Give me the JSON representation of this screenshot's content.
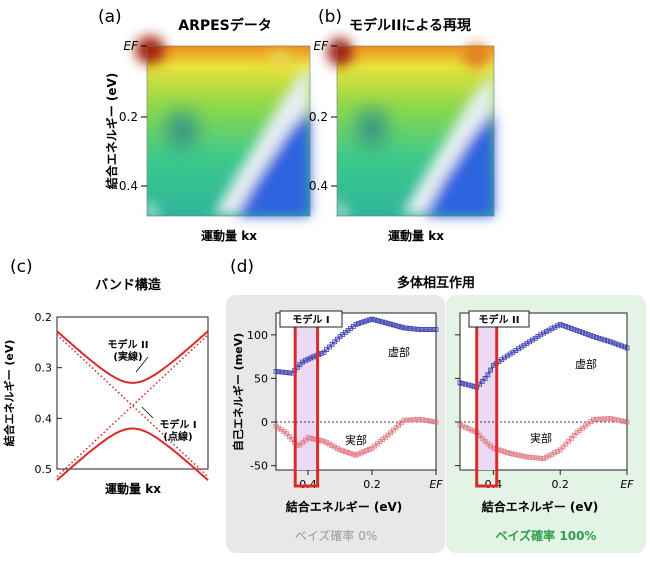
{
  "panels": {
    "a": {
      "letter": "(a)",
      "title": "ARPESデータ",
      "ylabel": "結合エネルギー (eV)",
      "xlabel": "運動量 kx",
      "yticks": [
        "EF",
        "0.2",
        "0.4"
      ]
    },
    "b": {
      "letter": "(b)",
      "title": "モデルIIによる再現",
      "xlabel": "運動量 kx",
      "yticks": [
        "EF",
        "0.2",
        "0.4"
      ]
    },
    "c": {
      "letter": "(c)",
      "title": "バンド構造",
      "ylabel": "結合エネルギー (eV)",
      "xlabel": "運動量 kx",
      "annotation_model2": "モデル II",
      "annotation_model2_sub": "(実線)",
      "annotation_model1": "モデル I",
      "annotation_model1_sub": "(点線)"
    },
    "d": {
      "letter": "(d)",
      "title": "多体相互作用",
      "ylabel": "自己エネルギー (meV)",
      "xlabel": "結合エネルギー (eV)",
      "left_box": "モデル I",
      "right_box": "モデル II",
      "imag_label": "虚部",
      "real_label": "実部",
      "bayes_left": "ベイズ確率 0%",
      "bayes_right": "ベイズ確率 100%"
    }
  },
  "colors": {
    "red": "#d92b2b",
    "blue": "#3a3fb0",
    "pink": "#e07a82",
    "bayes_left": "#999999",
    "bayes_right": "#2e9e48",
    "bg_left": "#e8e8e8",
    "bg_right": "#e3f4e6"
  },
  "chart_data": [
    {
      "type": "line",
      "panel": "c",
      "ylabel": "結合エネルギー (eV)",
      "xlabel": "運動量 kx",
      "yticks": [
        0.2,
        0.3,
        0.4,
        0.5
      ],
      "ylim": [
        0.2,
        0.5
      ],
      "series": [
        {
          "x": [
            -1,
            -0.5,
            0,
            0.5,
            1
          ],
          "y": [
            0.235,
            0.29,
            0.375,
            0.29,
            0.235
          ]
        },
        {
          "x": [
            -1,
            -0.5,
            0,
            0.5,
            1
          ],
          "y": [
            0.235,
            0.305,
            0.375,
            0.305,
            0.235
          ]
        }
      ]
    },
    {
      "type": "scatter",
      "panel": "d-left",
      "xlabel": "結合エネルギー (eV)",
      "ylabel": "自己エネルギー (meV)",
      "yticks": [
        -50,
        0,
        50,
        100
      ],
      "xticks": [
        "0.4",
        "0.2",
        "EF"
      ],
      "ylim": [
        -55,
        125
      ],
      "xlim": [
        0.5,
        0.0
      ],
      "series": [
        {
          "x": [
            0.5,
            0.45,
            0.42,
            0.4,
            0.35,
            0.3,
            0.25,
            0.2,
            0.15,
            0.1,
            0.05,
            0.0
          ],
          "y": [
            58,
            56,
            68,
            72,
            80,
            98,
            112,
            118,
            113,
            108,
            106,
            106
          ]
        },
        {
          "x": [
            0.5,
            0.47,
            0.43,
            0.4,
            0.35,
            0.3,
            0.25,
            0.2,
            0.15,
            0.1,
            0.05,
            0.0
          ],
          "y": [
            -5,
            -12,
            -28,
            -18,
            -22,
            -32,
            -38,
            -30,
            -15,
            2,
            3,
            0
          ]
        }
      ]
    },
    {
      "type": "scatter",
      "panel": "d-right",
      "xlabel": "結合エネルギー (eV)",
      "xticks": [
        "0.4",
        "0.2",
        "EF"
      ],
      "ylim": [
        -55,
        125
      ],
      "xlim": [
        0.5,
        0.0
      ],
      "series": [
        {
          "x": [
            0.5,
            0.45,
            0.42,
            0.4,
            0.35,
            0.3,
            0.25,
            0.2,
            0.15,
            0.1,
            0.05,
            0.0
          ],
          "y": [
            45,
            40,
            52,
            65,
            78,
            90,
            102,
            112,
            105,
            98,
            92,
            85
          ]
        },
        {
          "x": [
            0.5,
            0.45,
            0.42,
            0.4,
            0.35,
            0.3,
            0.25,
            0.2,
            0.15,
            0.1,
            0.05,
            0.0
          ],
          "y": [
            -3,
            -12,
            -24,
            -30,
            -36,
            -40,
            -42,
            -32,
            -12,
            3,
            4,
            0
          ]
        }
      ]
    }
  ]
}
